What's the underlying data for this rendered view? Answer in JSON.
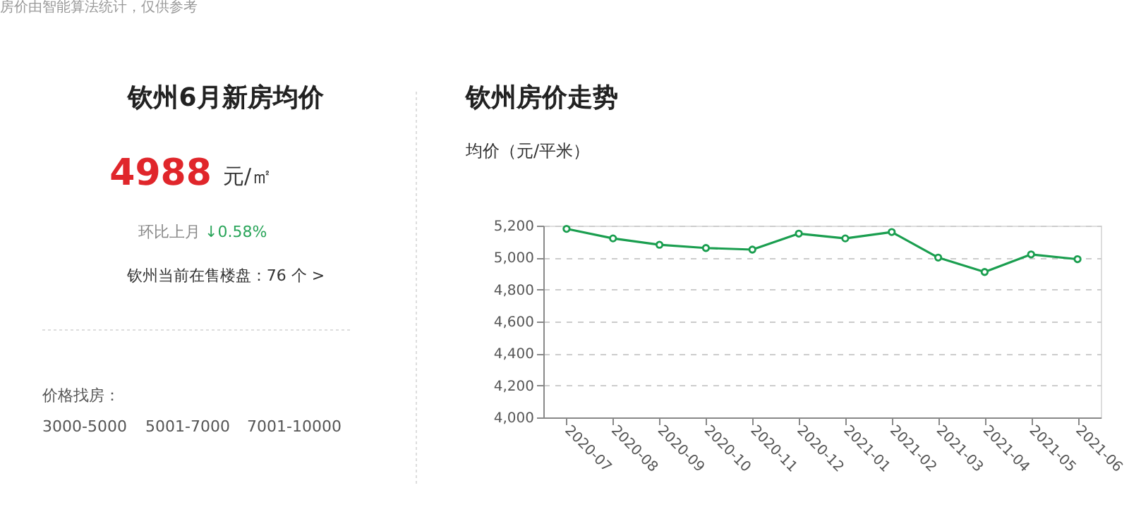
{
  "chart_data": [
    {
      "type": "other",
      "title": "钦州6月新房均价",
      "annotations": [
        "房价由智能算法统计，仅供参考",
        "4988",
        "元/㎡",
        "环比上月",
        "↓0.58%",
        "钦州当前在售楼盘：76 个 >",
        "价格找房：",
        "3000-5000",
        "5001-7000",
        "7001-10000"
      ]
    },
    {
      "type": "line",
      "title": "钦州房价走势",
      "ylabel": "均价（元/平米）",
      "categories": [
        "2020-07",
        "2020-08",
        "2020-09",
        "2020-10",
        "2020-11",
        "2020-12",
        "2021-01",
        "2021-02",
        "2021-03",
        "2021-04",
        "2021-05",
        "2021-06"
      ],
      "series": [
        {
          "color": "#1a9e4f",
          "values": [
            5180,
            5120,
            5080,
            5060,
            5050,
            5150,
            5120,
            5160,
            5000,
            4910,
            5020,
            4990
          ]
        }
      ],
      "ylim": [
        4000,
        5200
      ],
      "yticks": [
        {
          "value": 4000,
          "label": "4,000"
        },
        {
          "value": 4200,
          "label": "4,200"
        },
        {
          "value": 4400,
          "label": "4,400"
        },
        {
          "value": 4600,
          "label": "4,600"
        },
        {
          "value": 4800,
          "label": "4,800"
        },
        {
          "value": 5000,
          "label": "5,000"
        },
        {
          "value": 5200,
          "label": "5,200"
        }
      ],
      "grid": "y",
      "legend": false,
      "marker": "circle",
      "line_style": "solid"
    }
  ]
}
